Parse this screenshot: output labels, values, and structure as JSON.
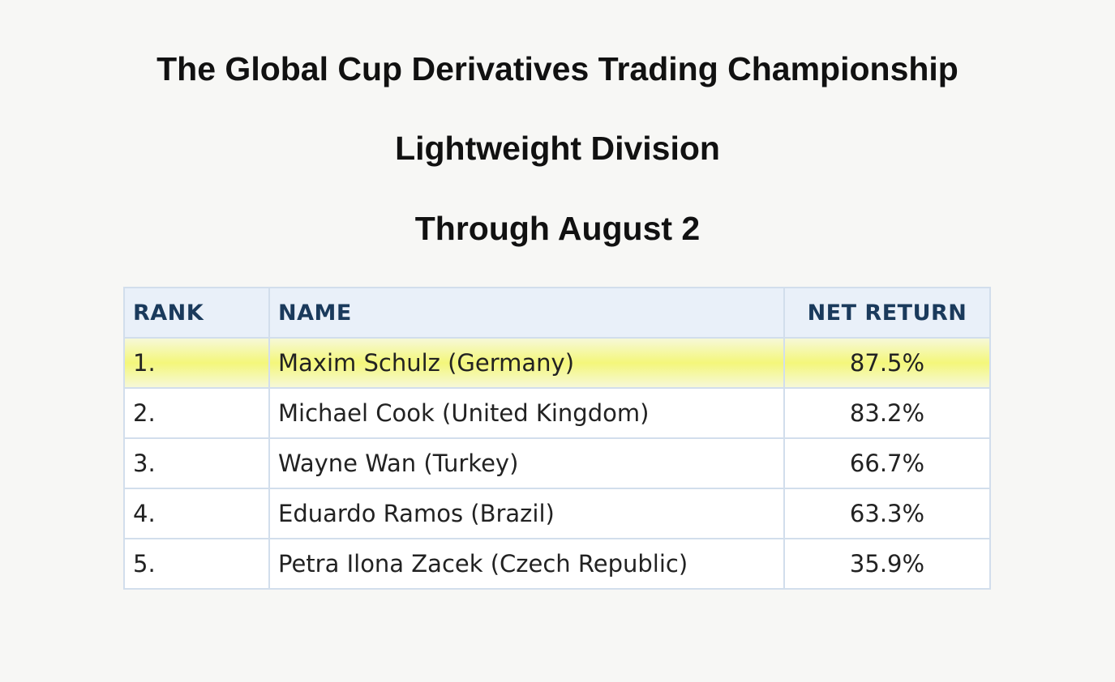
{
  "header": {
    "title": "The Global Cup Derivatives Trading Championship",
    "division": "Lightweight Division",
    "as_of": "Through August 2"
  },
  "table": {
    "columns": {
      "rank": "RANK",
      "name": "NAME",
      "net_return": "NET RETURN"
    },
    "highlight_color": "#f4f77a",
    "rows": [
      {
        "rank": "1.",
        "name": "Maxim Schulz (Germany)",
        "net_return": "87.5%",
        "highlighted": true
      },
      {
        "rank": "2.",
        "name": "Michael Cook (United Kingdom)",
        "net_return": "83.2%",
        "highlighted": false
      },
      {
        "rank": "3.",
        "name": "Wayne Wan (Turkey)",
        "net_return": "66.7%",
        "highlighted": false
      },
      {
        "rank": "4.",
        "name": "Eduardo Ramos (Brazil)",
        "net_return": "63.3%",
        "highlighted": false
      },
      {
        "rank": "5.",
        "name": "Petra Ilona Zacek (Czech Republic)",
        "net_return": "35.9%",
        "highlighted": false
      }
    ]
  }
}
